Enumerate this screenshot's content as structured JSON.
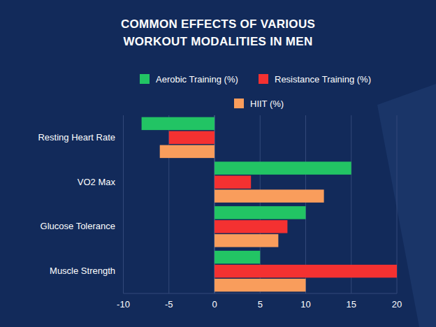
{
  "chart_data": {
    "type": "bar",
    "orientation": "horizontal",
    "title": "COMMON EFFECTS OF VARIOUS WORKOUT MODALITIES IN MEN",
    "categories": [
      "Resting Heart Rate",
      "VO2 Max",
      "Glucose Tolerance",
      "Muscle Strength"
    ],
    "series": [
      {
        "name": "Aerobic Training (%)",
        "color": "#22c464",
        "values": [
          -8,
          15,
          10,
          5
        ]
      },
      {
        "name": "Resistance Training (%)",
        "color": "#f43131",
        "values": [
          -5,
          4,
          8,
          20
        ]
      },
      {
        "name": "HIIT (%)",
        "color": "#f99d5c",
        "values": [
          -6,
          12,
          7,
          10
        ]
      }
    ],
    "xlim": [
      -10,
      20
    ],
    "xticks": [
      -10,
      -5,
      0,
      5,
      10,
      15,
      20
    ],
    "grid": true,
    "legend": "top"
  }
}
